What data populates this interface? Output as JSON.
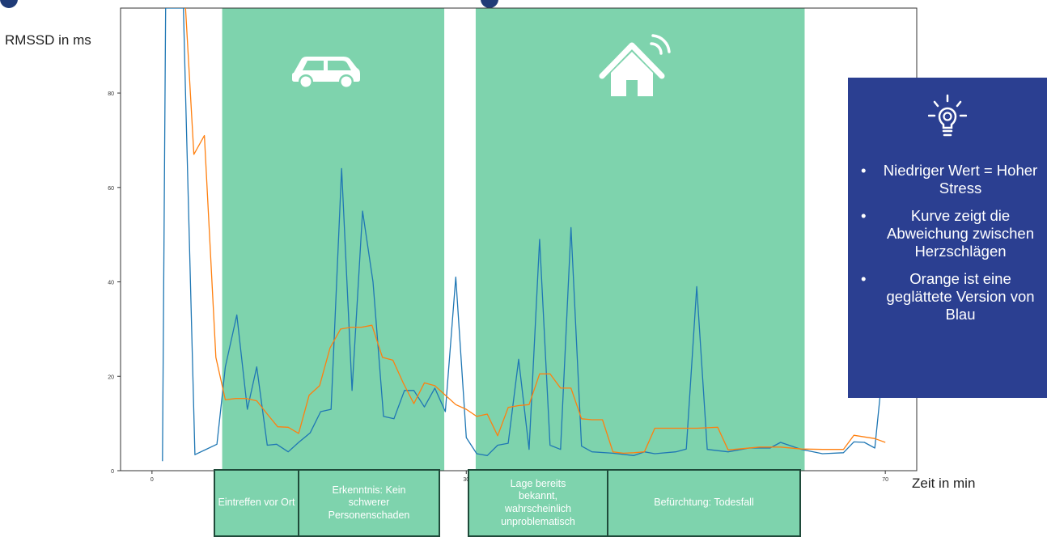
{
  "chart_data": {
    "type": "line",
    "xlabel": "Zeit in min",
    "ylabel": "RMSSD in ms",
    "xlim": [
      -3,
      73
    ],
    "ylim": [
      0,
      98
    ],
    "x_ticks": [
      0,
      30,
      70
    ],
    "x_tick_labels": [
      "0",
      "30",
      "70"
    ],
    "y_ticks": [
      0,
      20,
      40,
      60,
      80
    ],
    "y_tick_labels": [
      "0",
      "20",
      "40",
      "60",
      "80"
    ],
    "grid": false,
    "legend": "none",
    "colors": {
      "blue": "#1f77b4",
      "orange": "#ff7f0e",
      "shade": "#7ed3ad"
    },
    "shaded_regions": [
      {
        "x": [
          6.7,
          27.9
        ],
        "icon": "car-icon"
      },
      {
        "x": [
          30.9,
          62.3
        ],
        "icon": "smart-home-icon"
      }
    ],
    "series": [
      {
        "points": [
          [
            1.0,
            2
          ],
          [
            1.3,
            98
          ],
          [
            3.0,
            98
          ],
          [
            3.2,
            80
          ],
          [
            4.1,
            3.4
          ],
          [
            6.2,
            5.6
          ],
          [
            7.0,
            22
          ],
          [
            8.1,
            33
          ],
          [
            9.1,
            13
          ],
          [
            10.0,
            22
          ],
          [
            11.0,
            5.4
          ],
          [
            11.9,
            5.6
          ],
          [
            13.0,
            4
          ],
          [
            14.0,
            6
          ],
          [
            15.1,
            8
          ],
          [
            16.1,
            12.5
          ],
          [
            17.1,
            13
          ],
          [
            18.1,
            64
          ],
          [
            19.1,
            17
          ],
          [
            20.1,
            55
          ],
          [
            21.1,
            40
          ],
          [
            22.1,
            11.5
          ],
          [
            23.1,
            11
          ],
          [
            24.1,
            17
          ],
          [
            25.0,
            17
          ],
          [
            26.0,
            13.5
          ],
          [
            27.0,
            17.5
          ],
          [
            28.0,
            12.5
          ],
          [
            29.0,
            41
          ],
          [
            30.0,
            7
          ],
          [
            31.0,
            3.6
          ],
          [
            32.0,
            3.2
          ],
          [
            33.0,
            5.4
          ],
          [
            34.0,
            5.8
          ],
          [
            35.0,
            23.6
          ],
          [
            36.0,
            4.5
          ],
          [
            37.0,
            49
          ],
          [
            38.0,
            5.4
          ],
          [
            39.0,
            4.5
          ],
          [
            40.0,
            51.5
          ],
          [
            41.0,
            5.2
          ],
          [
            42.0,
            4
          ],
          [
            44.0,
            3.7
          ],
          [
            46.0,
            3.2
          ],
          [
            47.0,
            4
          ],
          [
            48.0,
            3.6
          ],
          [
            50.0,
            4
          ],
          [
            51.0,
            4.6
          ],
          [
            52.0,
            39
          ],
          [
            53.0,
            4.5
          ],
          [
            55.0,
            4
          ],
          [
            57.0,
            4.8
          ],
          [
            59.0,
            4.8
          ],
          [
            60.0,
            6
          ],
          [
            62.0,
            4.5
          ],
          [
            64.0,
            3.6
          ],
          [
            66.0,
            3.8
          ],
          [
            67.0,
            6.1
          ],
          [
            68.0,
            6
          ],
          [
            69.0,
            4.8
          ],
          [
            69.6,
            18
          ]
        ]
      },
      {
        "points": [
          [
            3.2,
            98
          ],
          [
            4.0,
            67
          ],
          [
            5.0,
            71
          ],
          [
            6.1,
            24
          ],
          [
            7.0,
            15
          ],
          [
            8.0,
            15.3
          ],
          [
            9.0,
            15.3
          ],
          [
            10.0,
            14.8
          ],
          [
            11.0,
            12
          ],
          [
            12.0,
            9.3
          ],
          [
            13.0,
            9.2
          ],
          [
            14.0,
            7.9
          ],
          [
            15.0,
            16
          ],
          [
            16.0,
            18
          ],
          [
            17.0,
            26
          ],
          [
            18.0,
            30
          ],
          [
            19.0,
            30.4
          ],
          [
            20.0,
            30.4
          ],
          [
            21.0,
            30.8
          ],
          [
            22.0,
            24
          ],
          [
            23.0,
            23.4
          ],
          [
            24.0,
            18.5
          ],
          [
            25.0,
            14.2
          ],
          [
            26.0,
            18.6
          ],
          [
            27.0,
            18
          ],
          [
            28.0,
            16
          ],
          [
            29.0,
            14
          ],
          [
            30.0,
            13
          ],
          [
            31.0,
            11.5
          ],
          [
            32.0,
            12
          ],
          [
            33.0,
            7.4
          ],
          [
            34.0,
            13.4
          ],
          [
            35.0,
            13.8
          ],
          [
            36.0,
            14
          ],
          [
            37.0,
            20.5
          ],
          [
            38.0,
            20.5
          ],
          [
            39.0,
            17.5
          ],
          [
            40.0,
            17.5
          ],
          [
            41.0,
            11
          ],
          [
            42.0,
            10.8
          ],
          [
            43.0,
            10.8
          ],
          [
            44.0,
            4
          ],
          [
            45.0,
            3.7
          ],
          [
            46.0,
            3.8
          ],
          [
            47.0,
            4
          ],
          [
            48.0,
            9
          ],
          [
            50.0,
            9
          ],
          [
            52.0,
            9
          ],
          [
            54.0,
            9.2
          ],
          [
            55.0,
            4.4
          ],
          [
            56.0,
            4.6
          ],
          [
            58.0,
            5
          ],
          [
            60.0,
            5
          ],
          [
            62.0,
            4.6
          ],
          [
            64.0,
            4.5
          ],
          [
            66.0,
            4.5
          ],
          [
            67.0,
            7.5
          ],
          [
            69.0,
            6.8
          ],
          [
            70.0,
            6
          ]
        ]
      }
    ]
  },
  "phases": [
    {
      "label": "Eintreffen vor Ort"
    },
    {
      "label": "Erkenntnis: Kein schwerer Personenschaden"
    },
    {
      "label": "Lage bereits bekannt, wahrscheinlich unproblematisch"
    },
    {
      "label": "Befürchtung: Todesfall"
    }
  ],
  "info": {
    "icon": "lightbulb-icon",
    "bullet": "•",
    "items": [
      "Niedriger Wert = Hoher Stress",
      "Kurve zeigt die Abweichung zwischen Herzschlägen",
      "Orange ist eine geglättete Version von Blau"
    ]
  }
}
